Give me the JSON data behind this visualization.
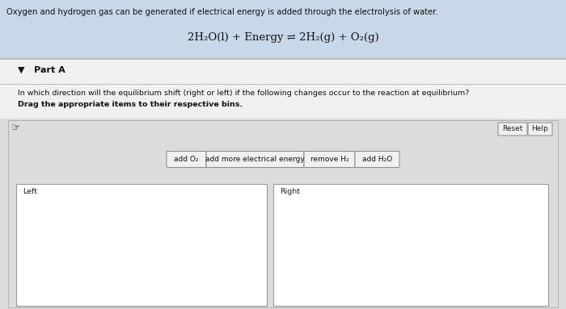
{
  "bg_color": "#e8e8e8",
  "header_bg": "#c8d8e8",
  "header_text": "Oxygen and hydrogen gas can be generated if electrical energy is added through the electrolysis of water.",
  "equation": "2H₂O(l) + Energy ⇌ 2H₂(g) + O₂(g)",
  "part_label": "▼   Part A",
  "question_line1": "In which direction will the equilibrium shift (right or left) if the following changes occur to the reaction at equilibrium?",
  "question_line2": "Drag the appropriate items to their respective bins.",
  "drag_items": [
    "add O₂",
    "add more electrical energy",
    "remove H₂",
    "add H₂O"
  ],
  "bin_left_label": "Left",
  "bin_right_label": "Right",
  "reset_btn": "Reset",
  "help_btn": "Help",
  "panel_bg": "#dcdcdc",
  "bin_bg": "#ffffff",
  "text_color": "#111111",
  "header_text_color": "#111111",
  "white_band_bg": "#f0f0f0"
}
